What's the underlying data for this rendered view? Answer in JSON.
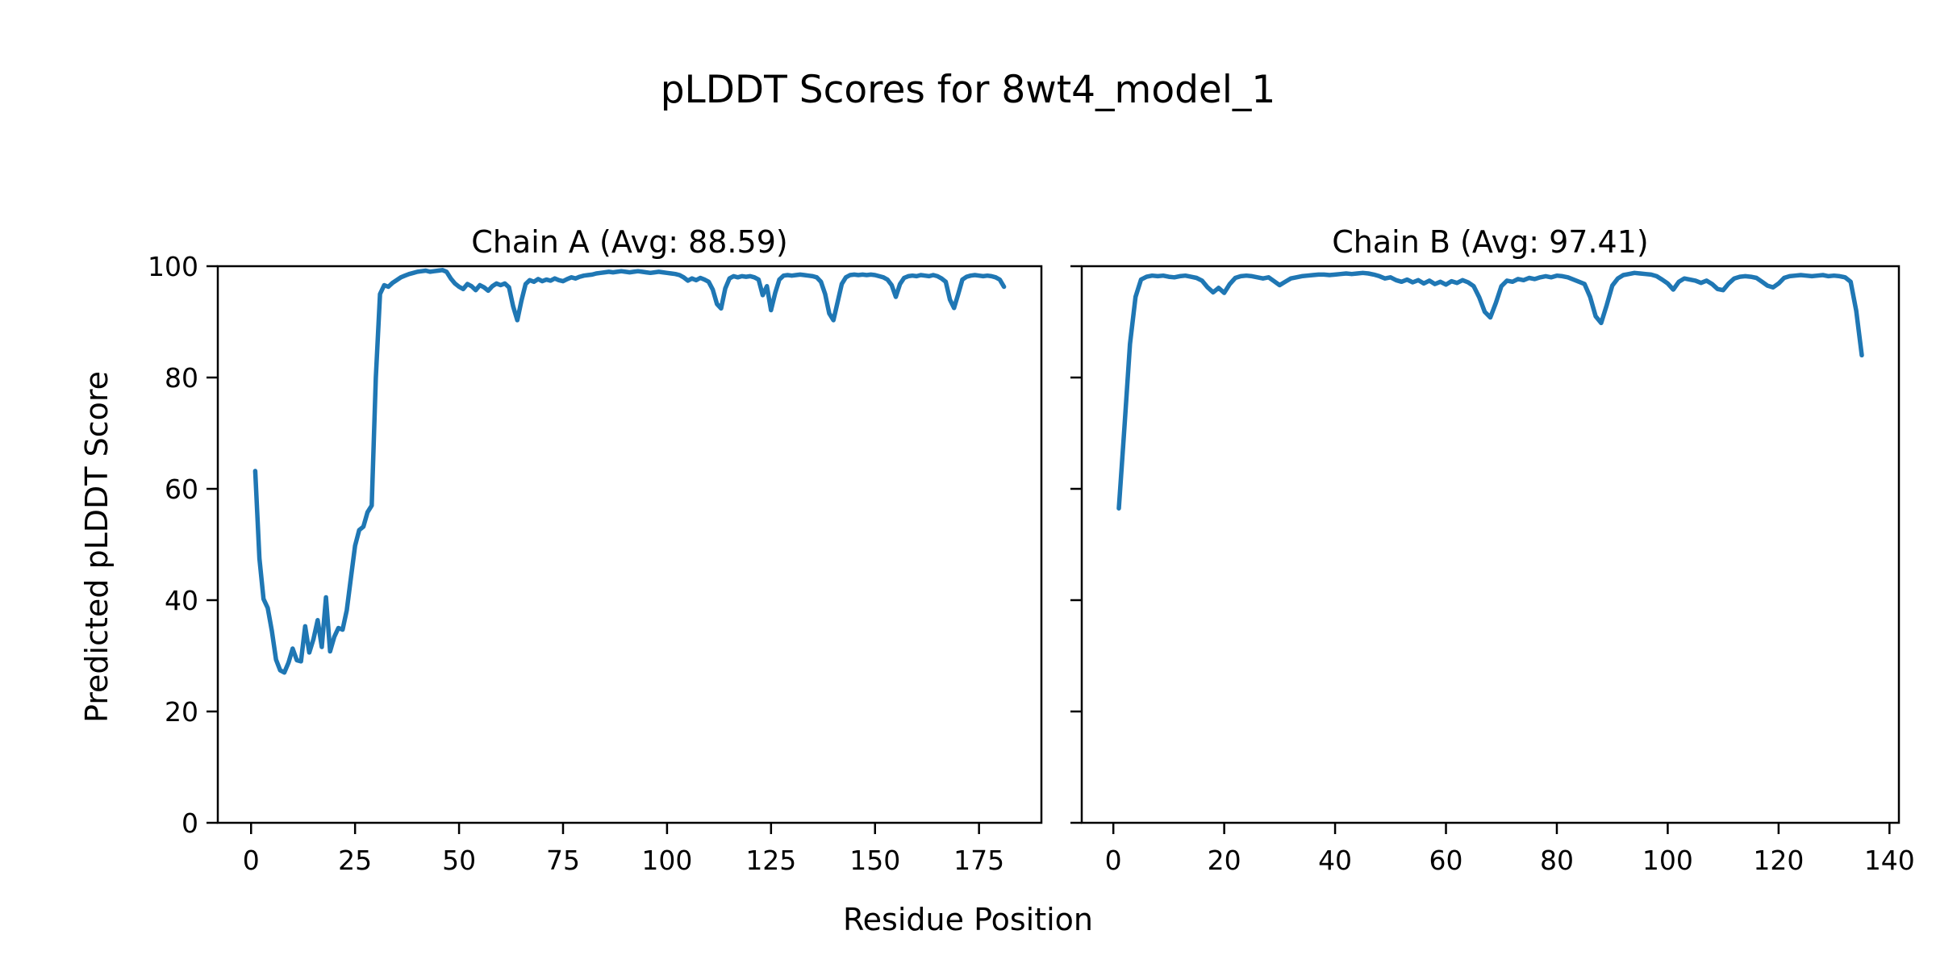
{
  "figure": {
    "suptitle": "pLDDT Scores for 8wt4_model_1",
    "xlabel": "Residue Position",
    "ylabel": "Predicted pLDDT Score",
    "background_color": "#ffffff",
    "text_color": "#000000",
    "spine_color": "#000000"
  },
  "chart_data": [
    {
      "type": "line",
      "title": "Chain A (Avg: 88.59)",
      "chain": "A",
      "average_plddt": 88.59,
      "xlabel": "Residue Position",
      "ylabel": "Predicted pLDDT Score",
      "xlim": [
        -8,
        190
      ],
      "ylim": [
        0,
        100
      ],
      "xticks": [
        0,
        25,
        50,
        75,
        100,
        125,
        150,
        175
      ],
      "yticks": [
        0,
        20,
        40,
        60,
        80,
        100
      ],
      "ytick_labels_visible": true,
      "grid": false,
      "legend": "none",
      "series": [
        {
          "name": "Chain A pLDDT",
          "color": "#1f77b4",
          "x_start": 1,
          "x_step": 1,
          "y": [
            63.2,
            47.5,
            40.2,
            38.6,
            34.5,
            29.3,
            27.4,
            27.0,
            28.8,
            31.3,
            29.2,
            29.0,
            35.3,
            30.6,
            33.0,
            36.4,
            31.6,
            40.5,
            30.8,
            33.4,
            35.0,
            34.7,
            38.2,
            44.0,
            49.8,
            52.6,
            53.2,
            55.8,
            57.0,
            80.0,
            95.0,
            96.6,
            96.3,
            97.0,
            97.5,
            98.0,
            98.3,
            98.6,
            98.8,
            99.0,
            99.1,
            99.2,
            99.0,
            99.1,
            99.2,
            99.3,
            99.0,
            97.8,
            96.9,
            96.3,
            95.9,
            96.8,
            96.4,
            95.7,
            96.6,
            96.2,
            95.6,
            96.4,
            96.9,
            96.6,
            96.9,
            96.2,
            92.8,
            90.3,
            93.8,
            96.8,
            97.5,
            97.2,
            97.7,
            97.3,
            97.6,
            97.4,
            97.8,
            97.5,
            97.3,
            97.7,
            98.0,
            97.8,
            98.1,
            98.3,
            98.4,
            98.5,
            98.7,
            98.8,
            98.9,
            99.0,
            98.9,
            99.0,
            99.1,
            99.0,
            98.9,
            99.0,
            99.1,
            99.0,
            98.9,
            98.8,
            98.9,
            99.0,
            98.9,
            98.8,
            98.7,
            98.6,
            98.4,
            98.0,
            97.4,
            97.8,
            97.5,
            97.9,
            97.6,
            97.2,
            95.8,
            93.2,
            92.4,
            96.0,
            97.8,
            98.2,
            98.0,
            98.2,
            98.1,
            98.2,
            98.0,
            97.6,
            94.8,
            96.4,
            92.1,
            95.2,
            97.6,
            98.3,
            98.4,
            98.3,
            98.4,
            98.5,
            98.4,
            98.3,
            98.2,
            98.0,
            97.2,
            95.0,
            91.5,
            90.3,
            93.5,
            96.8,
            98.0,
            98.4,
            98.5,
            98.4,
            98.5,
            98.4,
            98.5,
            98.4,
            98.2,
            98.0,
            97.6,
            96.6,
            94.5,
            96.8,
            97.9,
            98.2,
            98.3,
            98.2,
            98.4,
            98.3,
            98.2,
            98.4,
            98.2,
            97.8,
            97.2,
            94.0,
            92.5,
            95.0,
            97.6,
            98.1,
            98.3,
            98.4,
            98.3,
            98.2,
            98.3,
            98.2,
            98.0,
            97.6,
            96.3
          ]
        }
      ]
    },
    {
      "type": "line",
      "title": "Chain B (Avg: 97.41)",
      "chain": "B",
      "average_plddt": 97.41,
      "xlabel": "Residue Position",
      "ylabel": "Predicted pLDDT Score",
      "xlim": [
        -5.7,
        141.7
      ],
      "ylim": [
        0,
        100
      ],
      "xticks": [
        0,
        20,
        40,
        60,
        80,
        100,
        120,
        140
      ],
      "yticks": [
        0,
        20,
        40,
        60,
        80,
        100
      ],
      "ytick_labels_visible": false,
      "grid": false,
      "legend": "none",
      "series": [
        {
          "name": "Chain B pLDDT",
          "color": "#1f77b4",
          "x_start": 1,
          "x_step": 1,
          "y": [
            56.5,
            71.0,
            86.0,
            94.5,
            97.6,
            98.1,
            98.3,
            98.2,
            98.3,
            98.1,
            98.0,
            98.2,
            98.3,
            98.1,
            97.9,
            97.4,
            96.2,
            95.3,
            96.1,
            95.2,
            96.8,
            97.9,
            98.2,
            98.3,
            98.2,
            98.0,
            97.8,
            98.0,
            97.3,
            96.6,
            97.2,
            97.8,
            98.0,
            98.2,
            98.3,
            98.4,
            98.5,
            98.5,
            98.4,
            98.5,
            98.6,
            98.7,
            98.6,
            98.7,
            98.8,
            98.7,
            98.5,
            98.2,
            97.8,
            98.0,
            97.5,
            97.2,
            97.6,
            97.1,
            97.5,
            96.9,
            97.4,
            96.8,
            97.2,
            96.7,
            97.3,
            97.0,
            97.5,
            97.1,
            96.4,
            94.4,
            91.8,
            90.8,
            93.4,
            96.4,
            97.4,
            97.2,
            97.7,
            97.5,
            97.9,
            97.7,
            98.0,
            98.2,
            98.0,
            98.3,
            98.2,
            98.0,
            97.6,
            97.2,
            96.8,
            94.5,
            91.0,
            89.8,
            93.0,
            96.5,
            97.8,
            98.4,
            98.6,
            98.8,
            98.7,
            98.6,
            98.5,
            98.2,
            97.6,
            96.9,
            95.8,
            97.2,
            97.8,
            97.6,
            97.4,
            97.0,
            97.4,
            96.8,
            95.9,
            95.7,
            96.9,
            97.8,
            98.1,
            98.2,
            98.1,
            97.9,
            97.2,
            96.5,
            96.2,
            96.9,
            97.9,
            98.2,
            98.3,
            98.4,
            98.3,
            98.2,
            98.3,
            98.4,
            98.2,
            98.3,
            98.2,
            98.0,
            97.2,
            92.0,
            84.0
          ]
        }
      ]
    }
  ]
}
